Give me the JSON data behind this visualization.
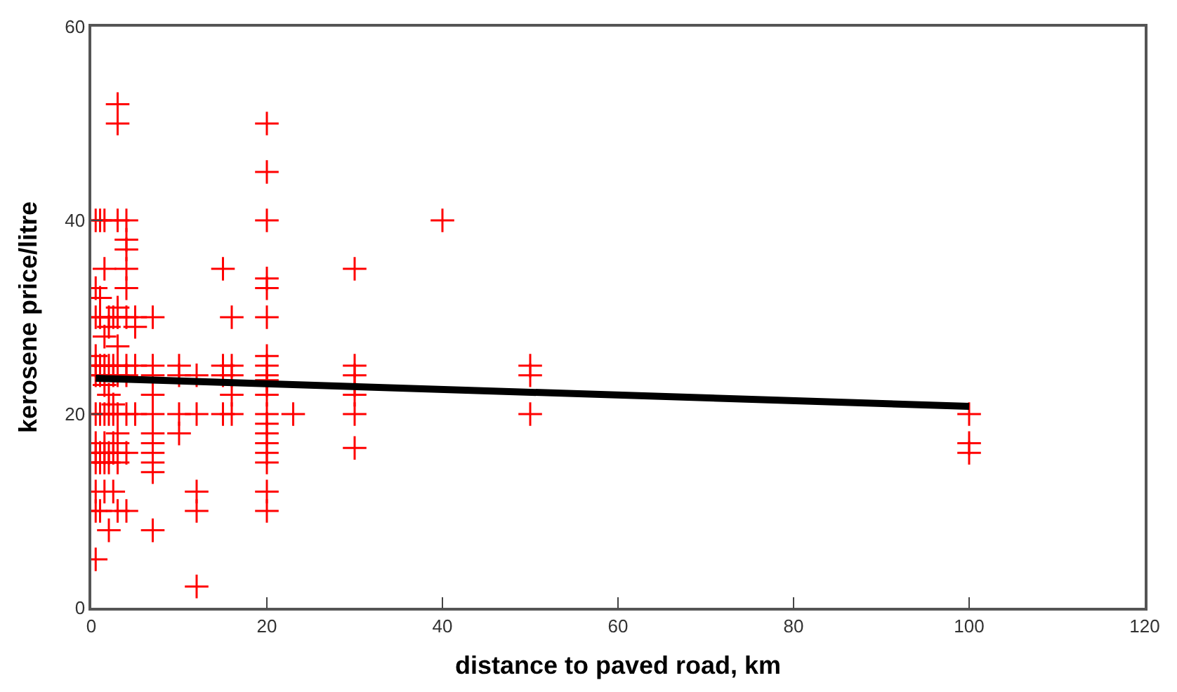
{
  "chart_data": {
    "type": "scatter",
    "xlabel": "distance to paved road, km",
    "ylabel": "kerosene price/litre",
    "xlim": [
      0,
      120
    ],
    "ylim": [
      0,
      60
    ],
    "xticks": [
      0,
      20,
      40,
      60,
      80,
      100,
      120
    ],
    "yticks": [
      0,
      20,
      40,
      60
    ],
    "marker": "cross",
    "series": [
      {
        "color": "#ff0000",
        "x": [
          0.5,
          0.5,
          0.5,
          0.5,
          0.5,
          0.5,
          0.5,
          0.5,
          0.5,
          0.5,
          0.5,
          0.5,
          0.5,
          1,
          1,
          1,
          1,
          1,
          1,
          1,
          1,
          1,
          1.5,
          1.5,
          1.5,
          1.5,
          1.5,
          1.5,
          1.5,
          1.5,
          1.5,
          1.5,
          2,
          2,
          2,
          2,
          2,
          2,
          2,
          2,
          2.5,
          2.5,
          2.5,
          2.5,
          2.5,
          2.5,
          2.5,
          2.5,
          3,
          3,
          3,
          3,
          3,
          3,
          3,
          3,
          3,
          3,
          3,
          3,
          3,
          3,
          4,
          4,
          4,
          4,
          4,
          4,
          4,
          4,
          4,
          4,
          4,
          5,
          5,
          5,
          5,
          7,
          7,
          7,
          7,
          7,
          7,
          7,
          7,
          7,
          7,
          7,
          10,
          10,
          10,
          10,
          12,
          12,
          12,
          12,
          12,
          15,
          15,
          15,
          15,
          16,
          16,
          16,
          16,
          16,
          20,
          20,
          20,
          20,
          20,
          20,
          20,
          20,
          20,
          20,
          20,
          20,
          20,
          20,
          20,
          20,
          20,
          20,
          20,
          20,
          23,
          30,
          30,
          30,
          30,
          30,
          30,
          30,
          40,
          50,
          50,
          50,
          100,
          100,
          100
        ],
        "values": [
          40,
          33,
          30,
          26,
          25,
          24,
          20,
          17,
          16,
          15,
          12,
          10,
          5,
          40,
          32,
          30,
          25,
          24,
          20,
          16,
          15,
          10,
          40,
          35,
          28,
          25,
          23,
          20,
          17,
          16,
          15,
          12,
          30,
          29,
          25,
          22,
          20,
          16,
          15,
          8,
          30,
          25,
          24,
          21,
          20,
          17,
          16,
          12,
          52,
          50,
          40,
          31,
          30,
          27,
          25,
          24,
          20,
          18,
          17,
          16,
          15,
          10,
          40,
          38,
          37,
          35,
          33,
          30,
          25,
          24,
          20,
          16,
          10,
          30,
          29,
          25,
          20,
          30,
          25,
          24,
          22,
          20,
          18,
          17,
          16,
          15,
          14,
          8,
          25,
          24,
          20,
          18,
          24,
          20,
          12,
          10,
          2.2,
          35,
          25,
          24,
          20,
          30,
          25,
          24,
          22,
          20,
          50,
          45,
          40,
          34,
          33,
          30,
          26,
          25,
          24,
          23.5,
          23,
          22,
          20,
          19,
          18,
          17,
          16,
          15,
          12,
          10,
          20,
          35,
          25,
          24,
          23,
          22,
          20,
          16.5,
          40,
          25,
          24,
          20,
          20,
          17,
          16
        ]
      },
      {
        "type": "line",
        "color": "#000000",
        "marker": "none",
        "x": [
          0.5,
          100
        ],
        "values": [
          23.7,
          20.8
        ]
      }
    ]
  }
}
